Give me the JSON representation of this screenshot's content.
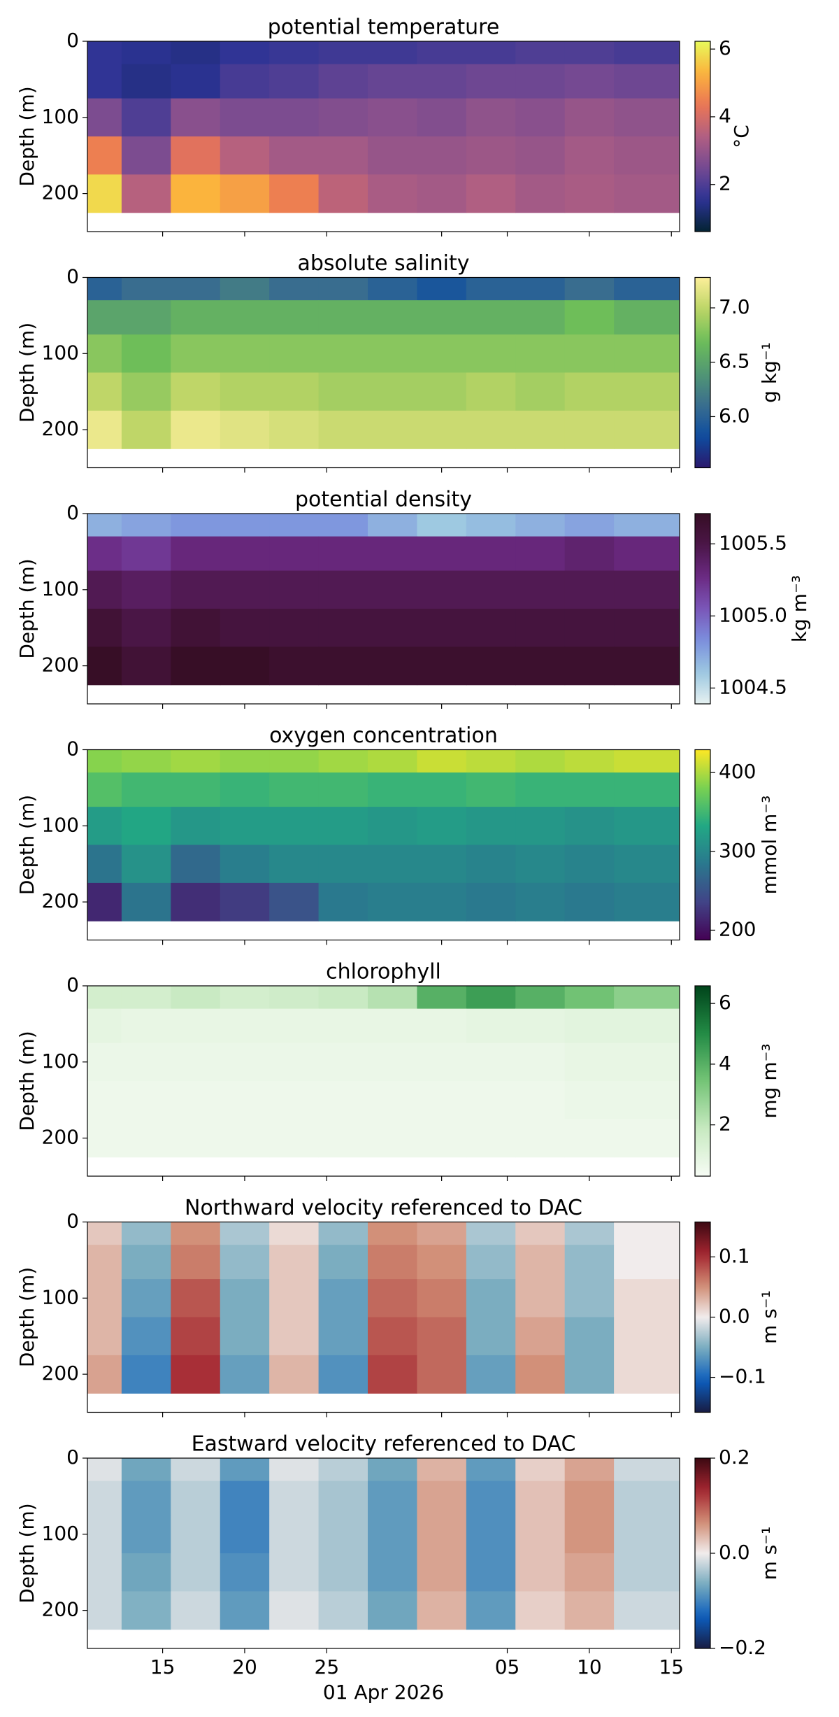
{
  "chart_data": [
    {
      "type": "heatmap",
      "title": "potential temperature",
      "ylabel": "Depth (m)",
      "colorbar_label": "°C",
      "colormap": "thermal",
      "x": [
        "2026-03-11",
        "2026-03-14",
        "2026-03-17",
        "2026-03-20",
        "2026-03-23",
        "2026-03-26",
        "2026-03-29",
        "2026-04-01",
        "2026-04-04",
        "2026-04-07",
        "2026-04-10",
        "2026-04-13"
      ],
      "depth": [
        10,
        50,
        100,
        150,
        200
      ],
      "z": [
        [
          1.6,
          1.5,
          1.4,
          1.6,
          1.7,
          1.8,
          1.8,
          1.9,
          1.9,
          2.0,
          2.0,
          1.9
        ],
        [
          1.6,
          1.4,
          1.5,
          1.9,
          2.0,
          2.2,
          2.3,
          2.3,
          2.4,
          2.4,
          2.5,
          2.4
        ],
        [
          2.6,
          2.0,
          2.8,
          2.6,
          2.6,
          2.7,
          2.8,
          2.7,
          2.9,
          2.8,
          3.0,
          2.9
        ],
        [
          4.5,
          2.6,
          4.2,
          3.5,
          3.2,
          3.2,
          3.0,
          3.0,
          3.1,
          3.0,
          3.2,
          3.1
        ],
        [
          5.8,
          3.5,
          5.3,
          5.0,
          4.5,
          3.6,
          3.3,
          3.2,
          3.4,
          3.2,
          3.3,
          3.2
        ]
      ],
      "xlim": [
        "2026-03-10T10:00",
        "2026-04-15T12:00"
      ],
      "xticks": [
        "2026-03-15",
        "2026-03-20",
        "2026-03-25",
        "2026-04-01",
        "2026-04-05",
        "2026-04-10",
        "2026-04-15"
      ],
      "ylim": [
        250,
        0
      ],
      "yticks": [
        0,
        100,
        200
      ],
      "clim": [
        0.61,
        6.23
      ],
      "cticks": [
        2,
        4,
        6
      ]
    },
    {
      "type": "heatmap",
      "title": "absolute salinity",
      "ylabel": "Depth (m)",
      "colorbar_label": "g kg⁻¹",
      "colormap": "haline",
      "x": [
        "2026-03-11",
        "2026-03-14",
        "2026-03-17",
        "2026-03-20",
        "2026-03-23",
        "2026-03-26",
        "2026-03-29",
        "2026-04-01",
        "2026-04-04",
        "2026-04-07",
        "2026-04-10",
        "2026-04-13"
      ],
      "depth": [
        10,
        50,
        100,
        150,
        200
      ],
      "z": [
        [
          6.0,
          6.1,
          6.1,
          6.2,
          6.1,
          6.1,
          6.0,
          5.9,
          6.0,
          6.0,
          6.1,
          6.0
        ],
        [
          6.5,
          6.5,
          6.6,
          6.6,
          6.6,
          6.6,
          6.6,
          6.6,
          6.6,
          6.6,
          6.7,
          6.6
        ],
        [
          6.8,
          6.7,
          6.8,
          6.8,
          6.8,
          6.8,
          6.8,
          6.8,
          6.8,
          6.8,
          6.8,
          6.8
        ],
        [
          7.0,
          6.85,
          7.0,
          6.95,
          6.95,
          6.9,
          6.9,
          6.9,
          6.95,
          6.9,
          6.95,
          6.95
        ],
        [
          7.2,
          7.0,
          7.2,
          7.15,
          7.1,
          7.05,
          7.05,
          7.05,
          7.05,
          7.05,
          7.05,
          7.05
        ]
      ],
      "xlim": [
        "2026-03-10T10:00",
        "2026-04-15T12:00"
      ],
      "xticks": [
        "2026-03-15",
        "2026-03-20",
        "2026-03-25",
        "2026-04-01",
        "2026-04-05",
        "2026-04-10",
        "2026-04-15"
      ],
      "ylim": [
        250,
        0
      ],
      "yticks": [
        0,
        100,
        200
      ],
      "clim": [
        5.53,
        7.28
      ],
      "cticks": [
        {
          "value": 6,
          "label": "6.0"
        },
        6.5,
        {
          "value": 7,
          "label": "7.0"
        }
      ]
    },
    {
      "type": "heatmap",
      "title": "potential density",
      "ylabel": "Depth (m)",
      "colorbar_label": "kg m⁻³",
      "colormap": "dense",
      "x": [
        "2026-03-11",
        "2026-03-14",
        "2026-03-17",
        "2026-03-20",
        "2026-03-23",
        "2026-03-26",
        "2026-03-29",
        "2026-04-01",
        "2026-04-04",
        "2026-04-07",
        "2026-04-10",
        "2026-04-13"
      ],
      "depth": [
        10,
        50,
        100,
        150,
        200
      ],
      "z": [
        [
          1004.7,
          1004.75,
          1004.8,
          1004.8,
          1004.8,
          1004.8,
          1004.7,
          1004.6,
          1004.65,
          1004.7,
          1004.75,
          1004.7
        ],
        [
          1005.25,
          1005.2,
          1005.3,
          1005.3,
          1005.3,
          1005.3,
          1005.3,
          1005.3,
          1005.3,
          1005.3,
          1005.35,
          1005.3
        ],
        [
          1005.45,
          1005.4,
          1005.45,
          1005.45,
          1005.45,
          1005.45,
          1005.45,
          1005.45,
          1005.45,
          1005.45,
          1005.45,
          1005.45
        ],
        [
          1005.6,
          1005.5,
          1005.6,
          1005.55,
          1005.55,
          1005.55,
          1005.55,
          1005.55,
          1005.55,
          1005.55,
          1005.55,
          1005.55
        ],
        [
          1005.7,
          1005.6,
          1005.7,
          1005.7,
          1005.65,
          1005.65,
          1005.65,
          1005.65,
          1005.65,
          1005.65,
          1005.65,
          1005.65
        ]
      ],
      "xlim": [
        "2026-03-10T10:00",
        "2026-04-15T12:00"
      ],
      "xticks": [
        "2026-03-15",
        "2026-03-20",
        "2026-03-25",
        "2026-04-01",
        "2026-04-05",
        "2026-04-10",
        "2026-04-15"
      ],
      "ylim": [
        250,
        0
      ],
      "yticks": [
        0,
        100,
        200
      ],
      "clim": [
        1004.39,
        1005.71
      ],
      "cticks": [
        1004.5,
        {
          "value": 1005,
          "label": "1005.0"
        },
        1005.5
      ]
    },
    {
      "type": "heatmap",
      "title": "oxygen concentration",
      "ylabel": "Depth (m)",
      "colorbar_label": "mmol m⁻³",
      "colormap": "viridis",
      "x": [
        "2026-03-11",
        "2026-03-14",
        "2026-03-17",
        "2026-03-20",
        "2026-03-23",
        "2026-03-26",
        "2026-03-29",
        "2026-04-01",
        "2026-04-04",
        "2026-04-07",
        "2026-04-10",
        "2026-04-13"
      ],
      "depth": [
        10,
        50,
        100,
        150,
        200
      ],
      "z": [
        [
          385,
          390,
          395,
          390,
          390,
          395,
          400,
          410,
          405,
          400,
          405,
          410
        ],
        [
          360,
          350,
          350,
          345,
          350,
          350,
          345,
          345,
          350,
          345,
          345,
          345
        ],
        [
          320,
          330,
          315,
          320,
          320,
          320,
          315,
          320,
          315,
          315,
          310,
          315
        ],
        [
          280,
          310,
          270,
          290,
          300,
          300,
          300,
          300,
          295,
          300,
          295,
          300
        ],
        [
          215,
          280,
          220,
          230,
          250,
          285,
          290,
          290,
          285,
          290,
          285,
          290
        ]
      ],
      "xlim": [
        "2026-03-10T10:00",
        "2026-04-15T12:00"
      ],
      "xticks": [
        "2026-03-15",
        "2026-03-20",
        "2026-03-25",
        "2026-04-01",
        "2026-04-05",
        "2026-04-10",
        "2026-04-15"
      ],
      "ylim": [
        250,
        0
      ],
      "yticks": [
        0,
        100,
        200
      ],
      "clim": [
        187.5,
        429
      ],
      "cticks": [
        200,
        300,
        400
      ]
    },
    {
      "type": "heatmap",
      "title": "chlorophyll",
      "ylabel": "Depth (m)",
      "colorbar_label": "mg m⁻³",
      "colormap": "greens",
      "x": [
        "2026-03-11",
        "2026-03-14",
        "2026-03-17",
        "2026-03-20",
        "2026-03-23",
        "2026-03-26",
        "2026-03-29",
        "2026-04-01",
        "2026-04-04",
        "2026-04-07",
        "2026-04-10",
        "2026-04-13"
      ],
      "depth": [
        10,
        50,
        100,
        150,
        200
      ],
      "z": [
        [
          1.5,
          1.5,
          1.8,
          1.5,
          1.6,
          1.8,
          2.2,
          4.0,
          4.5,
          4.0,
          3.5,
          3.0
        ],
        [
          0.9,
          0.8,
          0.8,
          0.8,
          0.8,
          0.8,
          0.8,
          0.8,
          0.9,
          0.9,
          1.0,
          1.0
        ],
        [
          0.7,
          0.7,
          0.7,
          0.7,
          0.7,
          0.7,
          0.7,
          0.7,
          0.7,
          0.7,
          0.8,
          0.8
        ],
        [
          0.6,
          0.6,
          0.6,
          0.6,
          0.6,
          0.6,
          0.6,
          0.6,
          0.6,
          0.6,
          0.7,
          0.7
        ],
        [
          0.6,
          0.6,
          0.6,
          0.6,
          0.6,
          0.6,
          0.6,
          0.6,
          0.6,
          0.6,
          0.6,
          0.6
        ]
      ],
      "xlim": [
        "2026-03-10T10:00",
        "2026-04-15T12:00"
      ],
      "xticks": [
        "2026-03-15",
        "2026-03-20",
        "2026-03-25",
        "2026-04-01",
        "2026-04-05",
        "2026-04-10",
        "2026-04-15"
      ],
      "ylim": [
        250,
        0
      ],
      "yticks": [
        0,
        100,
        200
      ],
      "clim": [
        0.31,
        6.58
      ],
      "cticks": [
        2,
        4,
        6
      ]
    },
    {
      "type": "heatmap",
      "title": "Northward velocity referenced to DAC",
      "ylabel": "Depth (m)",
      "colorbar_label": "m s⁻¹",
      "colormap": "balance",
      "x": [
        "2026-03-11",
        "2026-03-14",
        "2026-03-17",
        "2026-03-20",
        "2026-03-23",
        "2026-03-26",
        "2026-03-29",
        "2026-04-01",
        "2026-04-04",
        "2026-04-07",
        "2026-04-10",
        "2026-04-13"
      ],
      "depth": [
        10,
        50,
        100,
        150,
        200
      ],
      "z": [
        [
          0.02,
          -0.04,
          0.05,
          -0.03,
          0.01,
          -0.04,
          0.05,
          0.04,
          -0.03,
          0.02,
          -0.03,
          0.0
        ],
        [
          0.03,
          -0.05,
          0.06,
          -0.04,
          0.02,
          -0.05,
          0.06,
          0.05,
          -0.04,
          0.03,
          -0.04,
          0.0
        ],
        [
          0.03,
          -0.06,
          0.08,
          -0.05,
          0.02,
          -0.06,
          0.07,
          0.06,
          -0.05,
          0.03,
          -0.04,
          0.01
        ],
        [
          0.03,
          -0.07,
          0.09,
          -0.05,
          0.02,
          -0.06,
          0.08,
          0.07,
          -0.05,
          0.04,
          -0.05,
          0.01
        ],
        [
          0.04,
          -0.08,
          0.1,
          -0.06,
          0.03,
          -0.07,
          0.09,
          0.07,
          -0.06,
          0.05,
          -0.05,
          0.01
        ]
      ],
      "xlim": [
        "2026-03-10T10:00",
        "2026-04-15T12:00"
      ],
      "xticks": [
        "2026-03-15",
        "2026-03-20",
        "2026-03-25",
        "2026-04-01",
        "2026-04-05",
        "2026-04-10",
        "2026-04-15"
      ],
      "ylim": [
        250,
        0
      ],
      "yticks": [
        0,
        100,
        200
      ],
      "clim": [
        -0.158,
        0.158
      ],
      "cticks": [
        {
          "value": -0.1,
          "label": "−0.1"
        },
        {
          "value": 0,
          "label": "0.0"
        },
        0.1
      ]
    },
    {
      "type": "heatmap",
      "title": "Eastward velocity referenced to DAC",
      "ylabel": "Depth (m)",
      "colorbar_label": "m s⁻¹",
      "colormap": "balance",
      "x": [
        "2026-03-11",
        "2026-03-14",
        "2026-03-17",
        "2026-03-20",
        "2026-03-23",
        "2026-03-26",
        "2026-03-29",
        "2026-04-01",
        "2026-04-04",
        "2026-04-07",
        "2026-04-10",
        "2026-04-13"
      ],
      "depth": [
        10,
        50,
        100,
        150,
        200
      ],
      "z": [
        [
          -0.01,
          -0.07,
          -0.02,
          -0.08,
          -0.01,
          -0.03,
          -0.07,
          0.04,
          -0.08,
          0.02,
          0.05,
          -0.02
        ],
        [
          -0.02,
          -0.08,
          -0.03,
          -0.1,
          -0.02,
          -0.04,
          -0.08,
          0.05,
          -0.09,
          0.03,
          0.06,
          -0.03
        ],
        [
          -0.02,
          -0.08,
          -0.03,
          -0.1,
          -0.02,
          -0.04,
          -0.08,
          0.05,
          -0.09,
          0.03,
          0.06,
          -0.03
        ],
        [
          -0.02,
          -0.07,
          -0.03,
          -0.09,
          -0.02,
          -0.04,
          -0.08,
          0.05,
          -0.09,
          0.03,
          0.05,
          -0.03
        ],
        [
          -0.02,
          -0.06,
          -0.02,
          -0.08,
          -0.01,
          -0.03,
          -0.07,
          0.04,
          -0.08,
          0.02,
          0.04,
          -0.02
        ]
      ],
      "xlim": [
        "2026-03-10T10:00",
        "2026-04-15T12:00"
      ],
      "xticks": [
        {
          "value": "2026-03-15",
          "label": "15"
        },
        {
          "value": "2026-03-20",
          "label": "20"
        },
        {
          "value": "2026-03-25",
          "label": "25"
        },
        {
          "value": "2026-04-05",
          "label": "05"
        },
        {
          "value": "2026-04-10",
          "label": "10"
        },
        {
          "value": "2026-04-15",
          "label": "15"
        }
      ],
      "xlabel": "01 Apr 2026",
      "ylim": [
        250,
        0
      ],
      "yticks": [
        0,
        100,
        200
      ],
      "clim": [
        -0.2,
        0.2
      ],
      "cticks": [
        {
          "value": -0.2,
          "label": "−0.2"
        },
        {
          "value": 0,
          "label": "0.0"
        },
        {
          "value": 0.2,
          "label": "0.2"
        }
      ]
    }
  ]
}
